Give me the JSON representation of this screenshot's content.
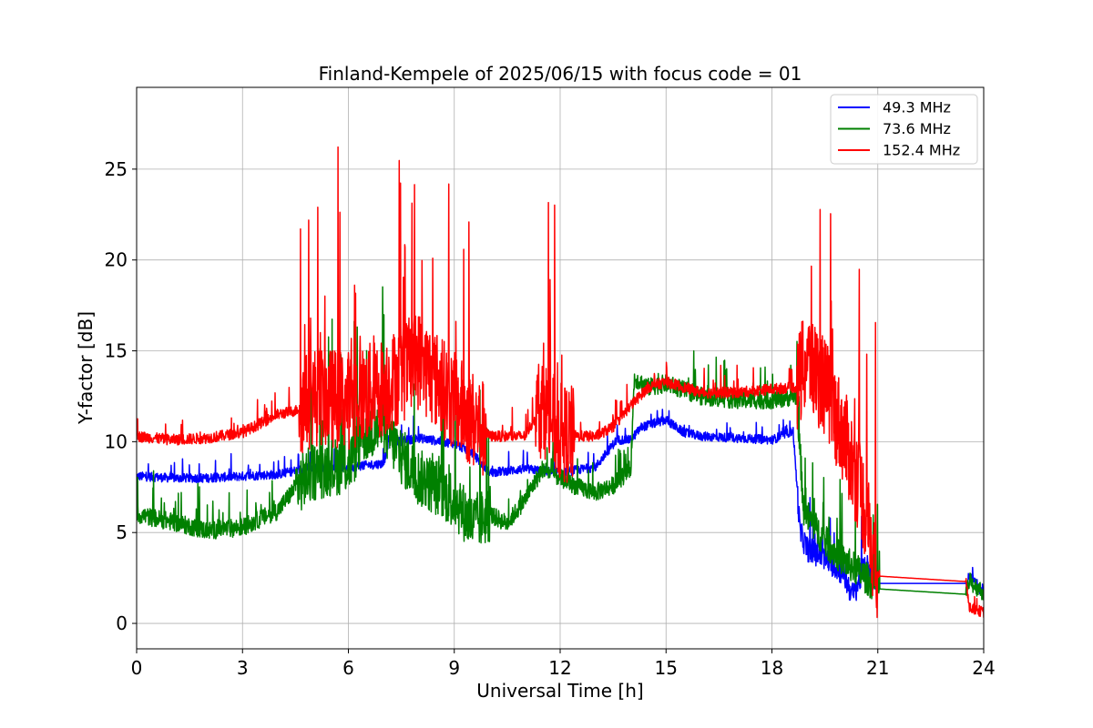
{
  "chart_data": {
    "type": "line",
    "title": "Finland-Kempele of 2025/06/15 with focus code = 01",
    "xlabel": "Universal Time [h]",
    "ylabel": "Y-factor [dB]",
    "xlim": [
      0,
      24
    ],
    "ylim": [
      -1.4,
      29.5
    ],
    "xticks": [
      0,
      3,
      6,
      9,
      12,
      15,
      18,
      21,
      24
    ],
    "yticks": [
      0,
      5,
      10,
      15,
      20,
      25
    ],
    "xtick_labels": [
      "0",
      "3",
      "6",
      "9",
      "12",
      "15",
      "18",
      "21",
      "24"
    ],
    "ytick_labels": [
      "0",
      "5",
      "10",
      "15",
      "20",
      "25"
    ],
    "grid": true,
    "legend_position": "top-right",
    "series": [
      {
        "name": " 49.3 MHz",
        "color": "#0000ff",
        "points": [
          [
            0,
            8.1
          ],
          [
            1,
            8.0
          ],
          [
            2,
            8.0
          ],
          [
            3,
            8.1
          ],
          [
            4,
            8.2
          ],
          [
            4.5,
            8.4
          ],
          [
            5,
            8.6
          ],
          [
            6,
            8.6
          ],
          [
            7,
            8.8
          ],
          [
            7.2,
            10.6
          ],
          [
            7.4,
            10.0
          ],
          [
            8,
            10.2
          ],
          [
            9,
            9.9
          ],
          [
            9.5,
            9.4
          ],
          [
            10,
            8.3
          ],
          [
            11,
            8.5
          ],
          [
            12,
            8.3
          ],
          [
            13,
            8.6
          ],
          [
            13.6,
            10.1
          ],
          [
            14,
            10.1
          ],
          [
            14.3,
            10.8
          ],
          [
            15,
            11.2
          ],
          [
            15.5,
            10.5
          ],
          [
            16,
            10.3
          ],
          [
            17,
            10.2
          ],
          [
            18,
            10.1
          ],
          [
            18.6,
            10.6
          ],
          [
            18.8,
            5.0
          ],
          [
            19,
            4.1
          ],
          [
            19.5,
            3.6
          ],
          [
            20,
            2.8
          ],
          [
            20.3,
            1.5
          ],
          [
            20.6,
            3.0
          ],
          [
            21,
            2.2
          ],
          [
            23.5,
            2.2
          ],
          [
            23.6,
            2.7
          ],
          [
            24,
            1.5
          ]
        ]
      },
      {
        "name": " 73.6 MHz",
        "color": "#008000",
        "points": [
          [
            0,
            6.0
          ],
          [
            1,
            5.6
          ],
          [
            2,
            5.1
          ],
          [
            3,
            5.3
          ],
          [
            4,
            6.2
          ],
          [
            4.5,
            7.5
          ],
          [
            5,
            8.3
          ],
          [
            5.5,
            8.6
          ],
          [
            6,
            8.7
          ],
          [
            6.5,
            10.5
          ],
          [
            7,
            10.8
          ],
          [
            7.5,
            9.2
          ],
          [
            8,
            8.0
          ],
          [
            8.5,
            7.5
          ],
          [
            9,
            6.8
          ],
          [
            9.5,
            5.5
          ],
          [
            10,
            6.0
          ],
          [
            10.5,
            5.5
          ],
          [
            11,
            6.8
          ],
          [
            11.5,
            8.5
          ],
          [
            12,
            8.0
          ],
          [
            12.5,
            7.5
          ],
          [
            13,
            7.2
          ],
          [
            13.5,
            7.6
          ],
          [
            14,
            8.5
          ],
          [
            14.1,
            13.5
          ],
          [
            14.5,
            13.0
          ],
          [
            15,
            13.2
          ],
          [
            16,
            12.5
          ],
          [
            17,
            12.3
          ],
          [
            18,
            12.3
          ],
          [
            18.7,
            12.5
          ],
          [
            18.9,
            6.2
          ],
          [
            19.5,
            4.5
          ],
          [
            20,
            3.5
          ],
          [
            20.5,
            2.8
          ],
          [
            21,
            1.9
          ],
          [
            23.5,
            1.6
          ],
          [
            23.6,
            2.3
          ],
          [
            24,
            1.7
          ]
        ]
      },
      {
        "name": "152.4 MHz",
        "color": "#ff0000",
        "points": [
          [
            0,
            10.3
          ],
          [
            1,
            10.1
          ],
          [
            2,
            10.2
          ],
          [
            3,
            10.5
          ],
          [
            4,
            11.5
          ],
          [
            4.5,
            11.7
          ],
          [
            5,
            12.5
          ],
          [
            6,
            12.3
          ],
          [
            7,
            13.0
          ],
          [
            8,
            14.5
          ],
          [
            9,
            12.2
          ],
          [
            10,
            10.3
          ],
          [
            11,
            10.3
          ],
          [
            11.5,
            12.0
          ],
          [
            12,
            10.5
          ],
          [
            12.5,
            10.3
          ],
          [
            13,
            10.3
          ],
          [
            13.5,
            10.8
          ],
          [
            14,
            12.0
          ],
          [
            14.5,
            13.0
          ],
          [
            15,
            13.3
          ],
          [
            16,
            12.7
          ],
          [
            17,
            12.7
          ],
          [
            18,
            12.9
          ],
          [
            18.7,
            13.0
          ],
          [
            19,
            14.5
          ],
          [
            19.5,
            13.0
          ],
          [
            20,
            10.5
          ],
          [
            20.5,
            7.5
          ],
          [
            21,
            2.8
          ],
          [
            21.05,
            2.6
          ],
          [
            23.5,
            2.3
          ],
          [
            23.6,
            0.9
          ],
          [
            24,
            0.6
          ]
        ]
      }
    ]
  }
}
